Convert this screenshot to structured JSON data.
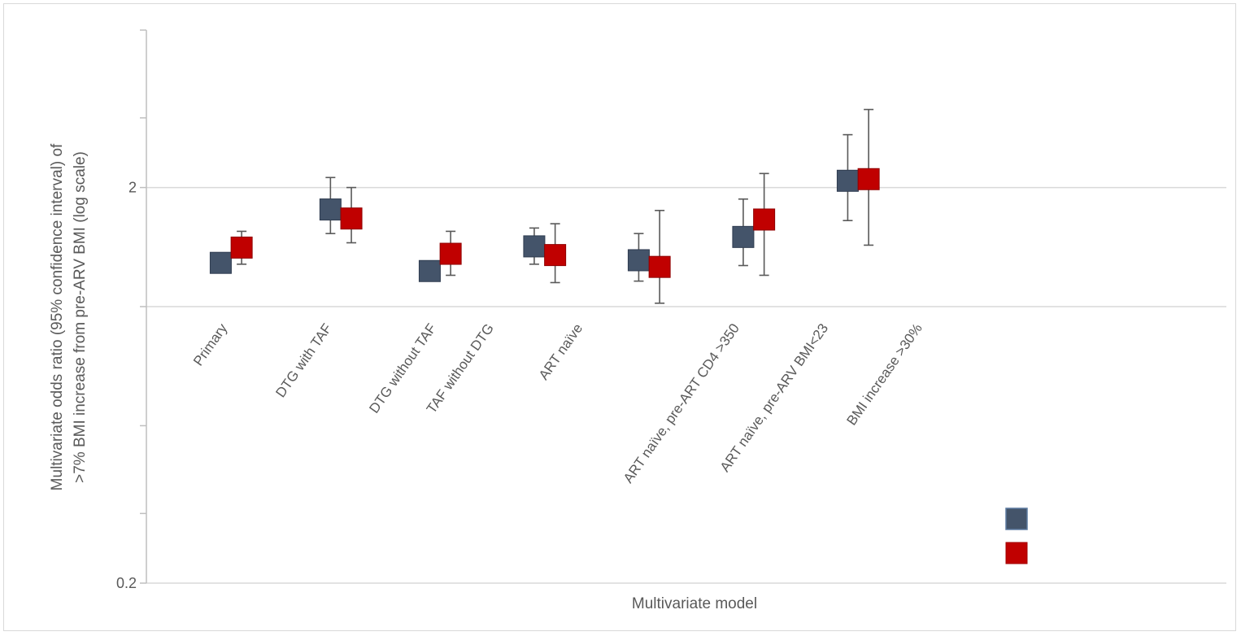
{
  "chart_data": {
    "type": "scatter",
    "subtype": "forest-plot-with-error-bars",
    "title": "",
    "xlabel": "Multivariate model",
    "ylabel_lines": [
      "Multivariate odds ratio (95% confidence interval) of",
      ">7% BMI increase from pre-ARV BMI (log scale)"
    ],
    "yscale": "log",
    "ylim": [
      0.2,
      5
    ],
    "y_tick_labels": [
      "0.2",
      "2"
    ],
    "y_tick_values": [
      0.2,
      2
    ],
    "grid_values": [
      1,
      2
    ],
    "grid": true,
    "legend": "bottom-center, markers only",
    "categories": [
      "Primary",
      "DTG with TAF",
      "DTG without TAF",
      "TAF without DTG",
      "ART naïve",
      "ART naïve, pre-ART CD4 >350",
      "ART naïve, pre-ARV BMI<23",
      "BMI increase >30%"
    ],
    "points": [
      {
        "series": 0,
        "x": 1.05,
        "y": 1.29,
        "low": 1.22,
        "high": 1.35
      },
      {
        "series": 1,
        "x": 1.25,
        "y": 1.41,
        "low": 1.28,
        "high": 1.55
      },
      {
        "series": 0,
        "x": 2.1,
        "y": 1.76,
        "low": 1.53,
        "high": 2.12
      },
      {
        "series": 1,
        "x": 2.3,
        "y": 1.67,
        "low": 1.45,
        "high": 2.0
      },
      {
        "series": 0,
        "x": 3.05,
        "y": 1.23,
        "low": 1.18,
        "high": 1.3
      },
      {
        "series": 1,
        "x": 3.25,
        "y": 1.36,
        "low": 1.2,
        "high": 1.55
      },
      {
        "series": 0,
        "x": 4.05,
        "y": 1.42,
        "low": 1.28,
        "high": 1.58
      },
      {
        "series": 1,
        "x": 4.25,
        "y": 1.35,
        "low": 1.15,
        "high": 1.62
      },
      {
        "series": 0,
        "x": 5.05,
        "y": 1.31,
        "low": 1.16,
        "high": 1.53
      },
      {
        "series": 1,
        "x": 5.25,
        "y": 1.26,
        "low": 1.02,
        "high": 1.75
      },
      {
        "series": 0,
        "x": 6.05,
        "y": 1.5,
        "low": 1.27,
        "high": 1.87
      },
      {
        "series": 1,
        "x": 6.25,
        "y": 1.66,
        "low": 1.2,
        "high": 2.17
      },
      {
        "series": 0,
        "x": 7.05,
        "y": 2.08,
        "low": 1.65,
        "high": 2.72
      },
      {
        "series": 1,
        "x": 7.25,
        "y": 2.1,
        "low": 1.43,
        "high": 3.15
      }
    ],
    "series": [
      {
        "color": "#44546a"
      },
      {
        "color": "#c00000"
      }
    ]
  },
  "colors": {
    "axis": "#bfbfbf",
    "grid": "#d9d9d9",
    "error_bar": "#595959",
    "text": "#595959",
    "border": "#d9d9d9"
  }
}
